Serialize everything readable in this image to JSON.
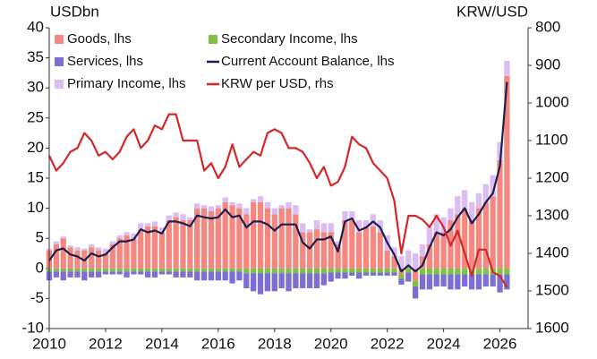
{
  "chart_data": {
    "type": "bar",
    "ylabel": "USDbn",
    "y2label": "KRW/USD",
    "x": [
      2010,
      2010.25,
      2010.5,
      2010.75,
      2011,
      2011.25,
      2011.5,
      2011.75,
      2012,
      2012.25,
      2012.5,
      2012.75,
      2013,
      2013.25,
      2013.5,
      2013.75,
      2014,
      2014.25,
      2014.5,
      2014.75,
      2015,
      2015.25,
      2015.5,
      2015.75,
      2016,
      2016.25,
      2016.5,
      2016.75,
      2017,
      2017.25,
      2017.5,
      2017.75,
      2018,
      2018.25,
      2018.5,
      2018.75,
      2019,
      2019.25,
      2019.5,
      2019.75,
      2020,
      2020.25,
      2020.5,
      2020.75,
      2021,
      2021.25,
      2021.5,
      2021.75,
      2022,
      2022.25,
      2022.5,
      2022.75,
      2023,
      2023.25,
      2023.5,
      2023.75,
      2024,
      2024.25,
      2024.5,
      2024.75,
      2025,
      2025.25,
      2025.5,
      2025.75,
      2026,
      2026.25
    ],
    "series": [
      {
        "name": "Goods, lhs",
        "type": "bar",
        "color": "#f4877f",
        "values": [
          3,
          4,
          5,
          3.5,
          3,
          3,
          3.5,
          3,
          2.5,
          4,
          5,
          5.5,
          5,
          6.5,
          7,
          7,
          6,
          8,
          8.5,
          8,
          8,
          10,
          10,
          9.5,
          10,
          11,
          10.5,
          10,
          9,
          11,
          11,
          10,
          9,
          10,
          10,
          9,
          6,
          6,
          6.5,
          6,
          6,
          4,
          8,
          8,
          6,
          7,
          7,
          6,
          3,
          2,
          -1,
          0.5,
          -2,
          2,
          4,
          6,
          6,
          8,
          9,
          10,
          8,
          10,
          11,
          12,
          18,
          32
        ]
      },
      {
        "name": "Secondary Income, lhs",
        "type": "bar",
        "color": "#7fc241",
        "values": [
          -0.5,
          -0.5,
          -0.5,
          -0.5,
          -0.5,
          -0.5,
          -0.5,
          -0.5,
          -0.5,
          -0.5,
          -0.5,
          -0.5,
          -0.5,
          -0.5,
          -0.5,
          -0.5,
          -0.5,
          -0.5,
          -0.5,
          -0.5,
          -0.5,
          -0.5,
          -0.5,
          -0.5,
          -0.5,
          -0.5,
          -0.5,
          -0.5,
          -0.8,
          -0.8,
          -0.8,
          -0.8,
          -0.8,
          -0.8,
          -0.8,
          -0.8,
          -0.8,
          -0.8,
          -0.8,
          -0.8,
          -0.7,
          -0.7,
          -0.7,
          -0.7,
          -0.7,
          -0.7,
          -0.7,
          -0.7,
          -0.7,
          -0.7,
          -0.7,
          -0.7,
          -1,
          -1,
          -1,
          -1,
          -1,
          -1,
          -1,
          -1,
          -1,
          -1,
          -1,
          -1,
          -1,
          -1
        ]
      },
      {
        "name": "Services, lhs",
        "type": "bar",
        "color": "#7b6fd6",
        "values": [
          -1.5,
          -1,
          -1.5,
          -1,
          -1,
          -1.5,
          -1,
          -1,
          -0.5,
          -0.5,
          -0.5,
          -1,
          -0.5,
          -0.5,
          -1,
          -1,
          -0.5,
          -0.5,
          -1,
          -1,
          -1,
          -1.5,
          -1.5,
          -1.5,
          -1.5,
          -1.5,
          -2,
          -1.5,
          -2.5,
          -3,
          -3.5,
          -3,
          -3,
          -2.5,
          -3,
          -2.5,
          -2.5,
          -2.5,
          -2.5,
          -2,
          -1.5,
          -1,
          -1,
          -0.5,
          -1,
          -0.5,
          -0.5,
          -0.5,
          -0.5,
          -0.5,
          -1,
          -1.5,
          -2,
          -2.5,
          -2.5,
          -2,
          -2,
          -2.5,
          -2.5,
          -2,
          -2.5,
          -2.5,
          -2,
          -2,
          -3,
          -2.5
        ]
      },
      {
        "name": "Current Account Balance, lhs",
        "type": "line",
        "color": "#1c1f4f",
        "values": [
          1.3,
          3.0,
          3.3,
          2.3,
          2.0,
          1.3,
          2.5,
          2.0,
          2.3,
          3.5,
          4.5,
          4.5,
          4.8,
          6.5,
          6.0,
          6.3,
          5.8,
          7.8,
          7.8,
          7.5,
          7.0,
          8.8,
          8.5,
          8.3,
          8.5,
          9.8,
          8.5,
          8.8,
          6.8,
          7.8,
          7.8,
          7.3,
          6.3,
          7.3,
          7.3,
          7.3,
          4.3,
          3.3,
          4.8,
          4.8,
          5.3,
          2.8,
          7.8,
          8.3,
          6.3,
          6.8,
          7.8,
          6.8,
          4.3,
          2.3,
          -0.5,
          0.5,
          -0.5,
          0.5,
          3.5,
          6.0,
          5.5,
          6.5,
          8.5,
          10.0,
          7.5,
          9.0,
          11.0,
          12.5,
          17,
          31
        ]
      },
      {
        "name": "Primary Income, lhs",
        "type": "bar",
        "color": "#dcbdf3",
        "values": [
          0.3,
          0.5,
          0.3,
          0.3,
          0.5,
          0.3,
          0.5,
          0.5,
          0.8,
          0.5,
          0.5,
          0.5,
          0.8,
          1,
          0.5,
          0.8,
          0.8,
          0.8,
          0.8,
          1,
          0.5,
          0.8,
          0.5,
          0.8,
          0.5,
          0.8,
          0.5,
          0.8,
          1,
          0.5,
          1,
          1,
          1,
          0.5,
          1,
          1.5,
          1.5,
          0.5,
          1.5,
          1.5,
          1.5,
          0.5,
          1.5,
          1.5,
          2,
          1,
          2,
          2,
          2.5,
          1.5,
          2,
          2.5,
          2.5,
          2,
          3,
          3,
          2.5,
          2,
          3,
          3,
          3,
          2.5,
          3,
          3.5,
          3,
          2.5
        ]
      },
      {
        "name": "KRW per USD, rhs",
        "type": "line",
        "axis": "y2",
        "color": "#d62728",
        "values": [
          1140,
          1180,
          1160,
          1130,
          1120,
          1080,
          1100,
          1140,
          1130,
          1150,
          1130,
          1090,
          1070,
          1120,
          1100,
          1060,
          1070,
          1030,
          1030,
          1100,
          1100,
          1100,
          1180,
          1160,
          1200,
          1170,
          1110,
          1170,
          1150,
          1130,
          1140,
          1080,
          1070,
          1080,
          1120,
          1120,
          1130,
          1160,
          1200,
          1170,
          1220,
          1210,
          1170,
          1090,
          1110,
          1120,
          1160,
          1180,
          1200,
          1260,
          1400,
          1300,
          1300,
          1310,
          1330,
          1300,
          1330,
          1380,
          1340,
          1400,
          1460,
          1390,
          1390,
          1450,
          1460,
          1490
        ]
      }
    ],
    "xlim": [
      2010,
      2027
    ],
    "xticks": [
      2010,
      2012,
      2014,
      2016,
      2018,
      2020,
      2022,
      2024,
      2026
    ],
    "ylim": [
      -10,
      40
    ],
    "yticks": [
      -10,
      -5,
      0,
      5,
      10,
      15,
      20,
      25,
      30,
      35,
      40
    ],
    "y2lim": [
      1600,
      800
    ],
    "y2ticks": [
      800,
      900,
      1000,
      1100,
      1200,
      1300,
      1400,
      1500,
      1600
    ],
    "legend": "upper left"
  }
}
